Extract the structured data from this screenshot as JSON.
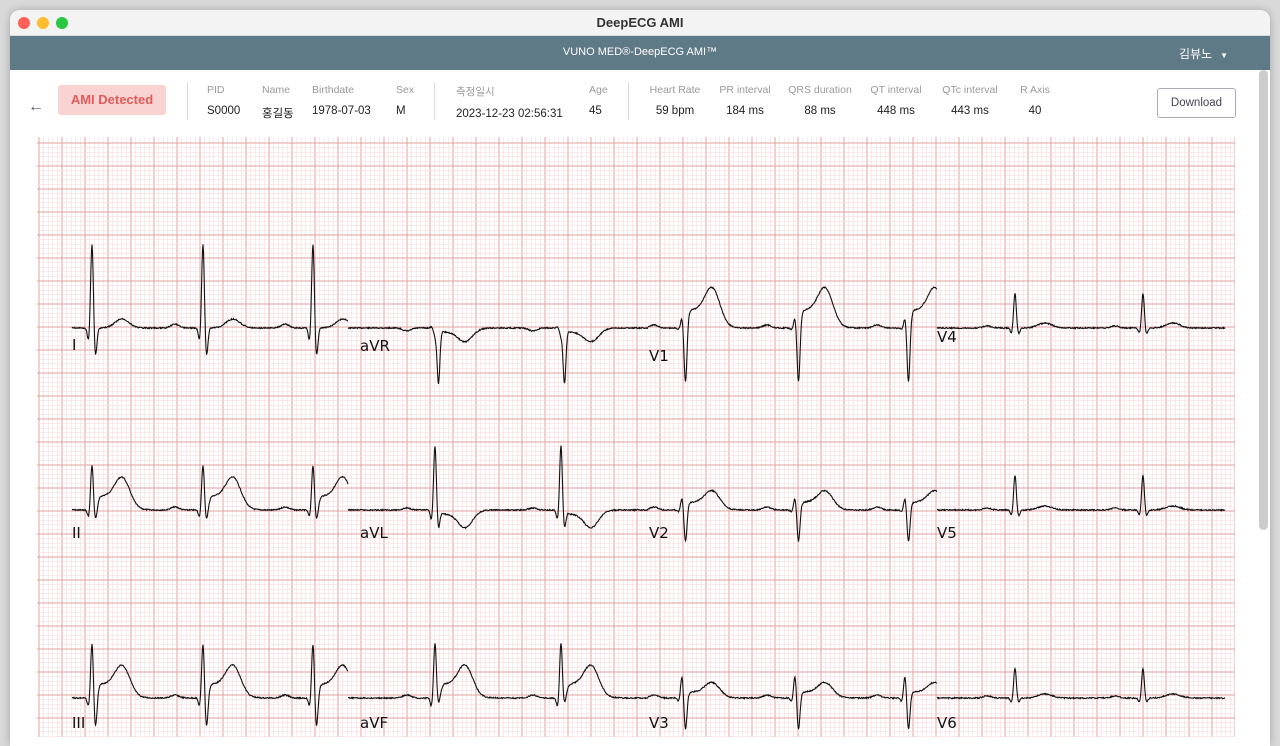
{
  "window": {
    "title": "DeepECG AMI"
  },
  "appbar": {
    "title": "VUNO MED®-DeepECG AMI™",
    "user": "김뷰노",
    "user_caret": "▼"
  },
  "header": {
    "back_icon": "arrow-left-icon",
    "back_glyph": "←",
    "status_badge": "AMI Detected",
    "colors": {
      "badge_bg": "#f9d2d2",
      "badge_text": "#e05c5c",
      "appbar": "#5f7a87",
      "grid_major": "#e3a0a0",
      "grid_minor": "#f6d6d6"
    },
    "fields": [
      {
        "label": "PID",
        "value": "S0000"
      },
      {
        "label": "Name",
        "value": "홍길동"
      },
      {
        "label": "Birthdate",
        "value": "1978-07-03"
      },
      {
        "label": "Sex",
        "value": "M"
      },
      {
        "label": "측정일시",
        "value": "2023-12-23 02:56:31"
      },
      {
        "label": "Age",
        "value": "45"
      },
      {
        "label": "Heart Rate",
        "value": "59 bpm"
      },
      {
        "label": "PR interval",
        "value": "184 ms"
      },
      {
        "label": "QRS duration",
        "value": "88 ms"
      },
      {
        "label": "QT interval",
        "value": "448 ms"
      },
      {
        "label": "QTc interval",
        "value": "443 ms"
      },
      {
        "label": "R Axis",
        "value": "40"
      }
    ],
    "download_label": "Download"
  },
  "ecg": {
    "leads": [
      [
        "I",
        "aVR",
        "V1",
        "V4"
      ],
      [
        "II",
        "aVL",
        "V2",
        "V5"
      ],
      [
        "III",
        "aVF",
        "V3",
        "V6"
      ]
    ]
  }
}
